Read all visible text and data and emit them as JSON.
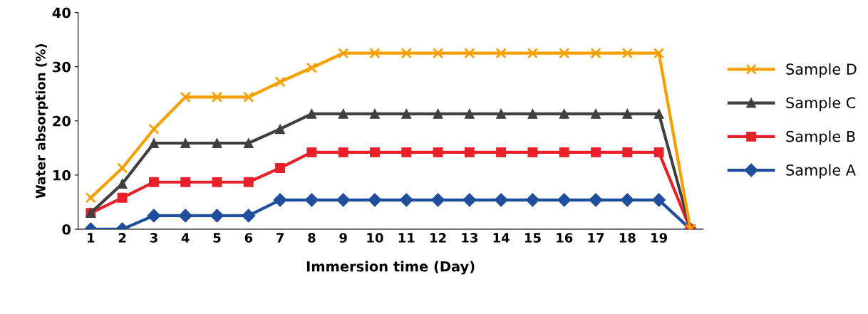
{
  "chart_data": {
    "type": "line",
    "xlabel": "Immersion time (Day)",
    "ylabel": "Water absorption (%)",
    "categories": [
      "1",
      "2",
      "3",
      "4",
      "5",
      "6",
      "7",
      "8",
      "9",
      "10",
      "11",
      "12",
      "13",
      "14",
      "15",
      "16",
      "17",
      "18",
      "19",
      null
    ],
    "series": [
      {
        "name": "Sample D",
        "color": "#f5a000",
        "marker": "cross",
        "values": [
          5.8,
          11.3,
          18.5,
          24.4,
          24.4,
          24.4,
          27.2,
          29.8,
          32.5,
          32.5,
          32.5,
          32.5,
          32.5,
          32.5,
          32.5,
          32.5,
          32.5,
          32.5,
          32.5,
          0
        ]
      },
      {
        "name": "Sample C",
        "color": "#404040",
        "marker": "triangle",
        "values": [
          3.0,
          8.4,
          15.9,
          15.9,
          15.9,
          15.9,
          18.5,
          21.3,
          21.3,
          21.3,
          21.3,
          21.3,
          21.3,
          21.3,
          21.3,
          21.3,
          21.3,
          21.3,
          21.3,
          0
        ]
      },
      {
        "name": "Sample B",
        "color": "#e8202a",
        "marker": "square",
        "values": [
          3.0,
          5.8,
          8.7,
          8.7,
          8.7,
          8.7,
          11.3,
          14.2,
          14.2,
          14.2,
          14.2,
          14.2,
          14.2,
          14.2,
          14.2,
          14.2,
          14.2,
          14.2,
          14.2,
          0
        ]
      },
      {
        "name": "Sample A",
        "color": "#1f4e9c",
        "marker": "diamond",
        "values": [
          0,
          0,
          2.5,
          2.5,
          2.5,
          2.5,
          5.4,
          5.4,
          5.4,
          5.4,
          5.4,
          5.4,
          5.4,
          5.4,
          5.4,
          5.4,
          5.4,
          5.4,
          5.4,
          0
        ]
      }
    ],
    "ylim": [
      0,
      40
    ],
    "yticks": [
      0,
      10,
      20,
      30,
      40
    ],
    "grid": false,
    "legend": "right"
  }
}
